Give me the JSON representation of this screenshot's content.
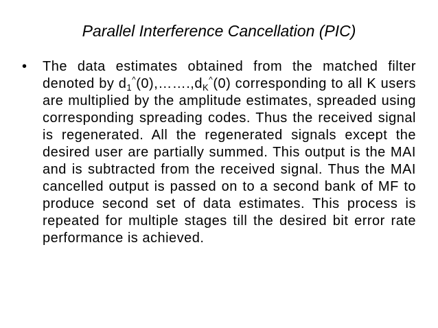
{
  "slide": {
    "title": "Parallel Interference Cancellation (PIC)",
    "bullet_glyph": "•",
    "paragraph": {
      "part1": "The data estimates obtained from the matched filter denoted by d",
      "sub1": "1",
      "sup1": "^",
      "part2": "(0),…….,d",
      "sub2": "K",
      "sup2": "^",
      "part3": "(0) corresponding to all K users are multiplied by the amplitude estimates, spreaded using corresponding spreading codes. Thus the received signal is regenerated.  All the regenerated signals except the desired user are partially summed. This output is the MAI and is subtracted from the received signal. Thus the MAI cancelled output is passed on to a second bank of MF to produce second set of data estimates.  This process is repeated for multiple stages till the desired bit error rate performance is achieved."
    }
  }
}
